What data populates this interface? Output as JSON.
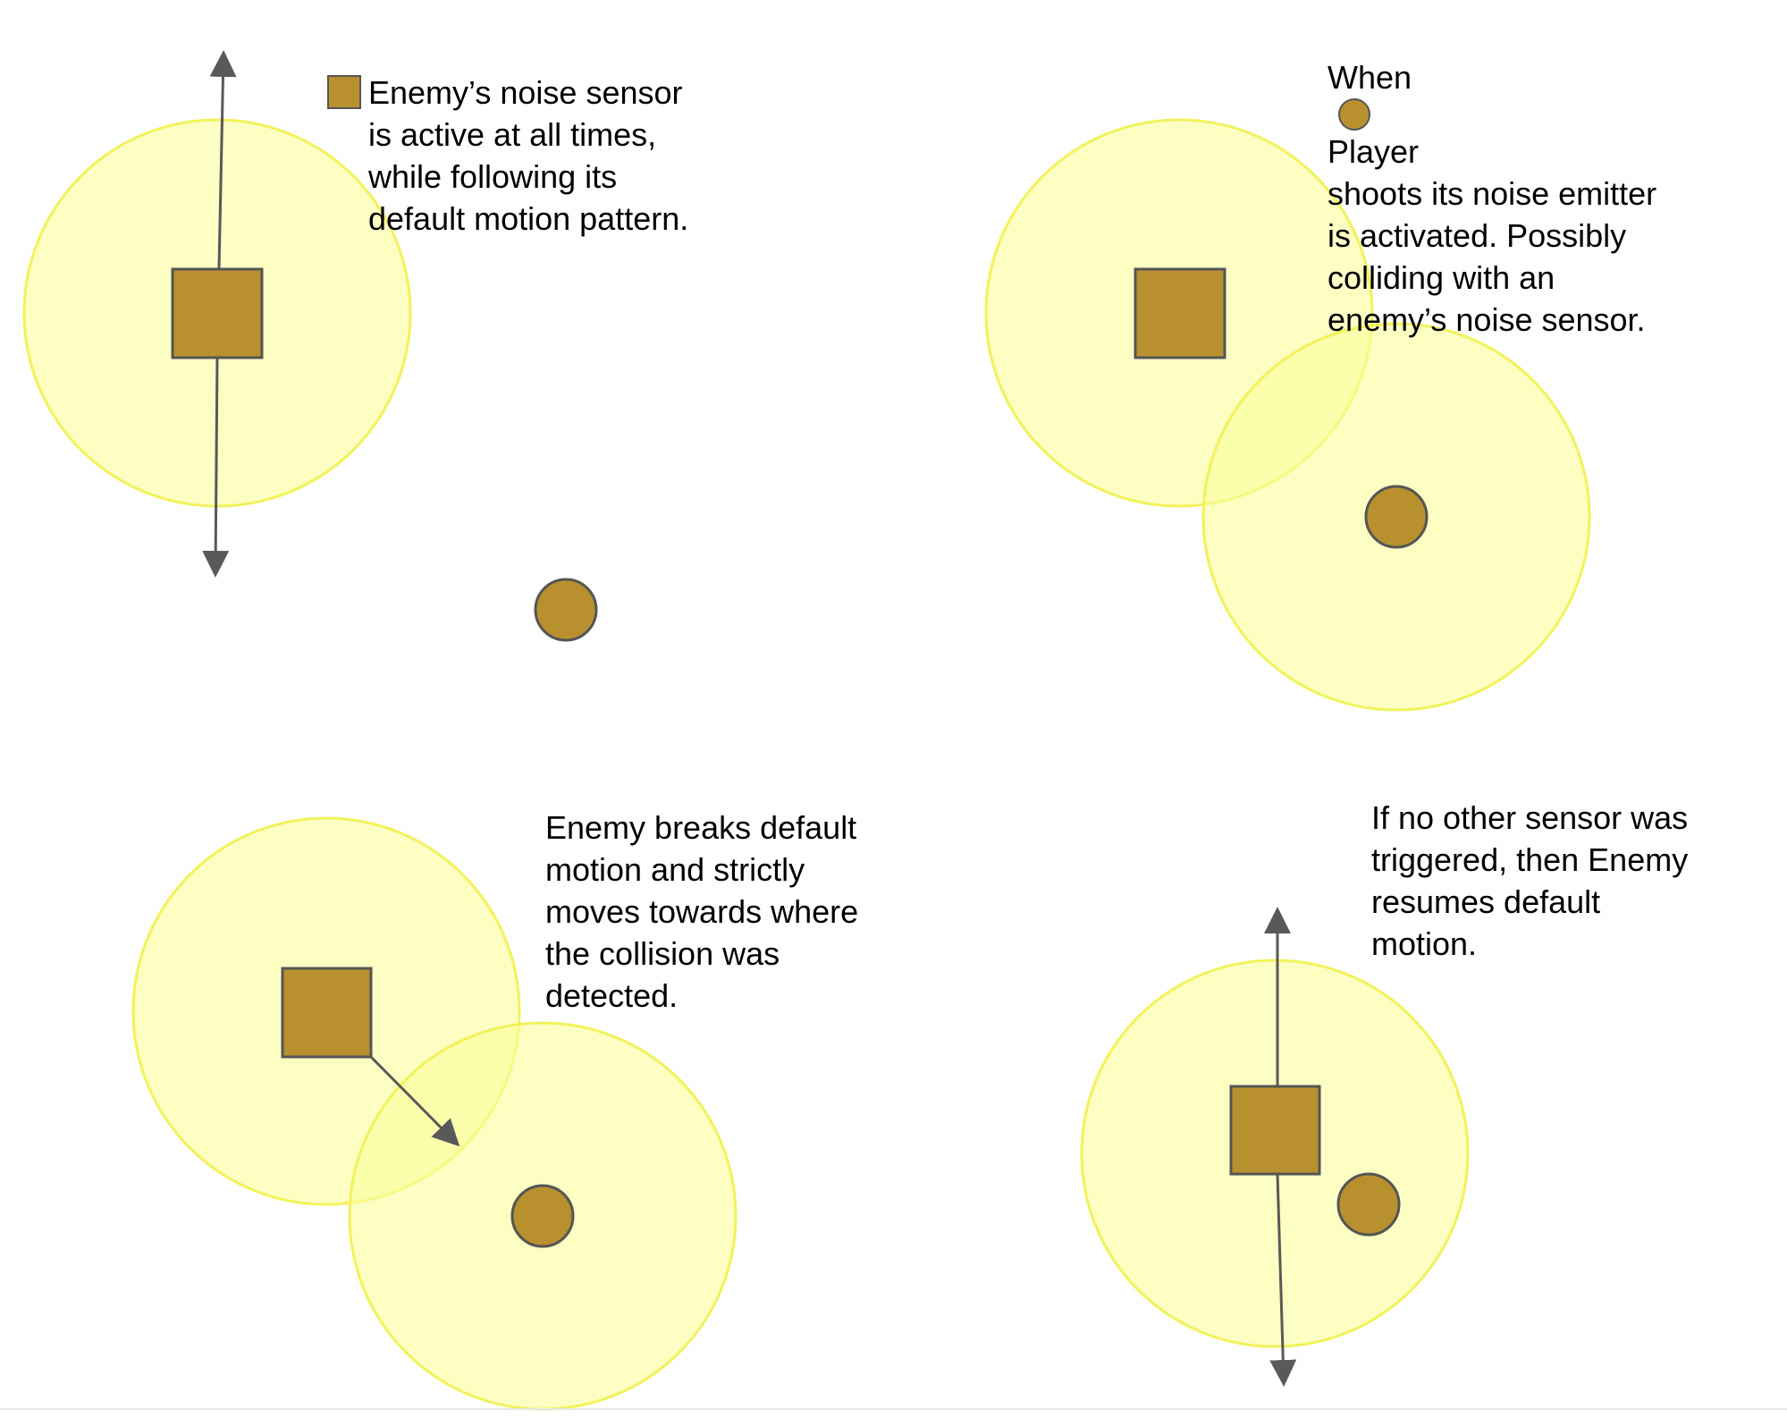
{
  "colors": {
    "sensor_fill": "#fafd9a",
    "sensor_stroke": "#f2f25a",
    "actor_fill": "#b8912e",
    "actor_stroke": "#555555",
    "arrow": "#595959",
    "text": "#000000"
  },
  "panels": [
    {
      "id": "panel-1",
      "caption_lines": [
        "Enemy’s noise sensor",
        "is active at all times,",
        "while following its",
        "default motion pattern."
      ]
    },
    {
      "id": "panel-2",
      "caption_first_before": "When",
      "caption_first_after": "Player",
      "caption_lines": [
        "shoots its noise emitter",
        "is activated. Possibly",
        "colliding with an",
        "enemy’s noise sensor."
      ]
    },
    {
      "id": "panel-3",
      "caption_lines": [
        "Enemy breaks default",
        "motion and strictly",
        "moves towards where",
        "the collision was",
        "detected."
      ]
    },
    {
      "id": "panel-4",
      "caption_lines": [
        "If no other sensor was",
        "triggered, then Enemy",
        "resumes default",
        "motion."
      ]
    }
  ]
}
